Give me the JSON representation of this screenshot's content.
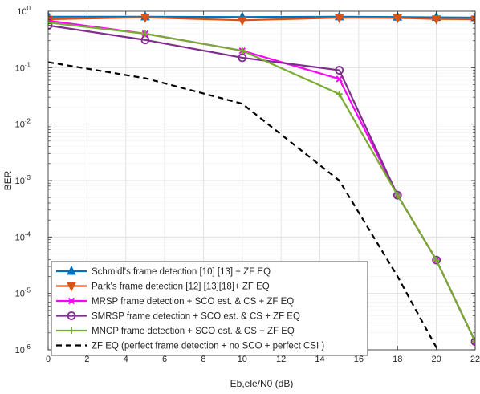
{
  "chart_data": {
    "type": "line",
    "xlabel": "Eb,ele/N0 (dB)",
    "ylabel": "BER",
    "xlim": [
      0,
      22
    ],
    "ylim": [
      1e-06,
      1
    ],
    "y_scale": "log",
    "grid": true,
    "legend_position": "bottom-left",
    "x_ticks": [
      0,
      2,
      4,
      6,
      8,
      10,
      12,
      14,
      16,
      18,
      20,
      22
    ],
    "y_ticks": [
      {
        "value": 1e-06,
        "base": "10",
        "exp": "-6"
      },
      {
        "value": 1e-05,
        "base": "10",
        "exp": "-5"
      },
      {
        "value": 0.0001,
        "base": "10",
        "exp": "-4"
      },
      {
        "value": 0.001,
        "base": "10",
        "exp": "-3"
      },
      {
        "value": 0.01,
        "base": "10",
        "exp": "-2"
      },
      {
        "value": 0.1,
        "base": "10",
        "exp": "-1"
      },
      {
        "value": 1,
        "base": "10",
        "exp": "0"
      }
    ],
    "series": [
      {
        "name": "Schmidl's frame detection [10] [13] + ZF EQ",
        "color": "#0072BD",
        "marker": "triangle-up",
        "dash": "solid",
        "x": [
          0,
          5,
          10,
          15,
          18,
          20,
          22
        ],
        "y": [
          0.8,
          0.8,
          0.79,
          0.8,
          0.79,
          0.78,
          0.77
        ]
      },
      {
        "name": "Park's frame detection [12] [13][18]+ ZF EQ",
        "color": "#D95319",
        "marker": "triangle-down",
        "dash": "solid",
        "x": [
          0,
          5,
          10,
          15,
          18,
          20,
          22
        ],
        "y": [
          0.72,
          0.78,
          0.69,
          0.77,
          0.76,
          0.73,
          0.72
        ]
      },
      {
        "name": "MRSP frame detection + SCO est. & CS + ZF EQ",
        "color": "#FF00FF",
        "marker": "x",
        "dash": "solid",
        "x": [
          0,
          5,
          10,
          15,
          18,
          20,
          22
        ],
        "y": [
          0.68,
          0.4,
          0.2,
          0.063,
          0.00055,
          3.9e-05,
          1.4e-06
        ]
      },
      {
        "name": "SMRSP frame detection + SCO est. & CS + ZF EQ",
        "color": "#7E2F8E",
        "marker": "circle",
        "dash": "solid",
        "x": [
          0,
          5,
          10,
          15,
          18,
          20,
          22
        ],
        "y": [
          0.56,
          0.31,
          0.15,
          0.09,
          0.00055,
          3.9e-05,
          1.4e-06
        ]
      },
      {
        "name": "MNCP frame detection + SCO est. & CS + ZF EQ",
        "color": "#77AC30",
        "marker": "plus",
        "dash": "solid",
        "x": [
          0,
          5,
          10,
          15,
          18,
          20,
          22
        ],
        "y": [
          0.63,
          0.4,
          0.2,
          0.034,
          0.00055,
          3.9e-05,
          1.4e-06
        ]
      },
      {
        "name": "ZF EQ (perfect frame detection + no SCO + perfect CSI )",
        "color": "#000000",
        "marker": "none",
        "dash": "dashed",
        "x": [
          0,
          5,
          10,
          15,
          18,
          20,
          22
        ],
        "y": [
          0.125,
          0.065,
          0.023,
          0.001,
          2e-05,
          1.1e-06,
          7.5e-08
        ]
      }
    ]
  }
}
